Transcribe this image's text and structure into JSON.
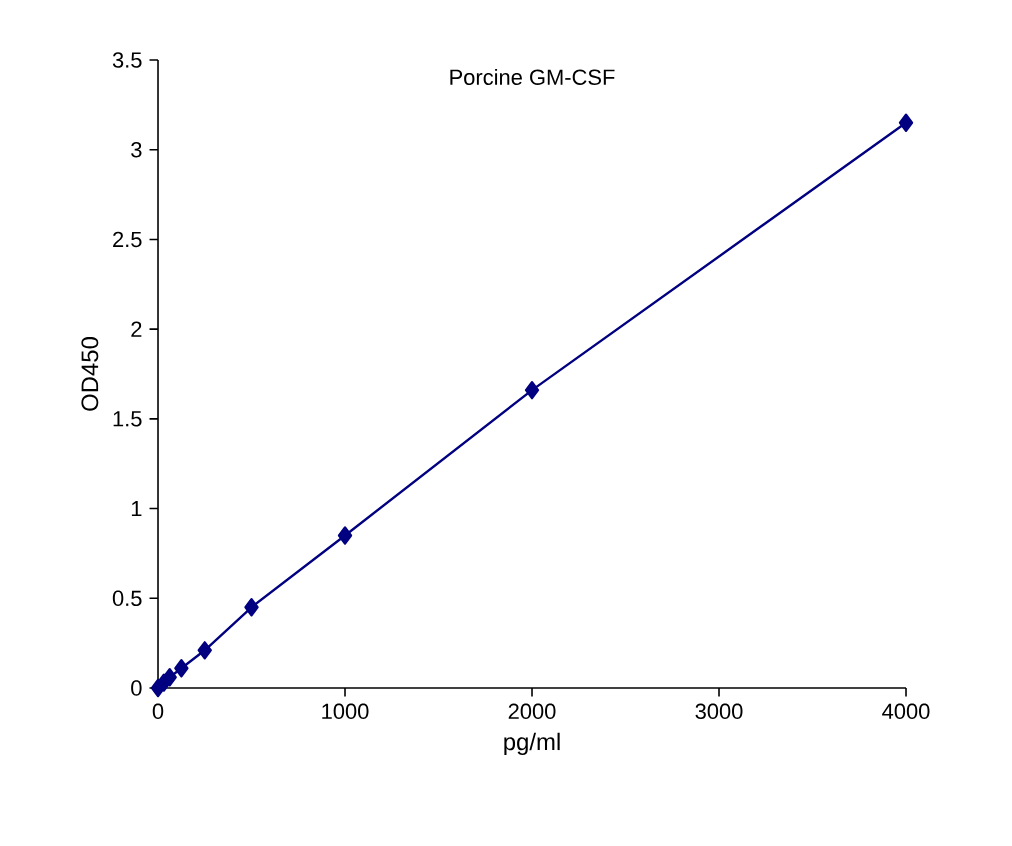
{
  "chart_data": {
    "type": "line",
    "title": "Porcine GM-CSF",
    "xlabel": "pg/ml",
    "ylabel": "OD450",
    "x": [
      0,
      31.25,
      62.5,
      125,
      250,
      500,
      1000,
      2000,
      4000
    ],
    "series": [
      {
        "color": "#000080",
        "values": [
          0,
          0.03,
          0.06,
          0.11,
          0.21,
          0.45,
          0.85,
          1.66,
          3.15
        ]
      }
    ],
    "xlim": [
      0,
      4000
    ],
    "xticks": [
      0,
      1000,
      2000,
      3000,
      4000
    ],
    "ylim": [
      0,
      3.5
    ],
    "yticks": [
      0,
      0.5,
      1,
      1.5,
      2,
      2.5,
      3,
      3.5
    ],
    "marker": "diamond",
    "line_style": "solid"
  }
}
